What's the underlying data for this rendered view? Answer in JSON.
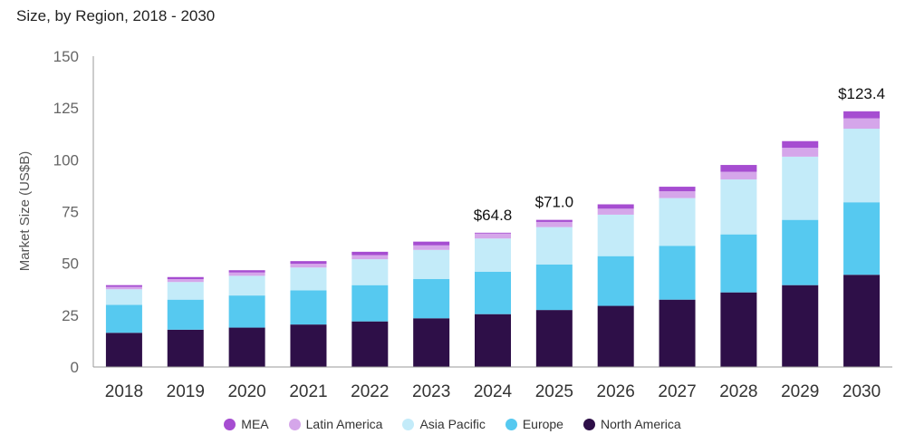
{
  "chart_data": {
    "type": "bar",
    "stacked": true,
    "title": "Size, by Region, 2018 - 2030",
    "xlabel": "",
    "ylabel": "Market Size (US$B)",
    "ylim": [
      0,
      150
    ],
    "yticks": [
      0,
      25,
      50,
      75,
      100,
      125,
      150
    ],
    "categories": [
      "2018",
      "2019",
      "2020",
      "2021",
      "2022",
      "2023",
      "2024",
      "2025",
      "2026",
      "2027",
      "2028",
      "2029",
      "2030"
    ],
    "series": [
      {
        "name": "North America",
        "color": "#2e0f48",
        "values": [
          16.5,
          18,
          19,
          20.5,
          22,
          23.5,
          25.5,
          27.5,
          29.5,
          32.5,
          36,
          39.5,
          44.5
        ]
      },
      {
        "name": "Europe",
        "color": "#56c9f0",
        "values": [
          13.5,
          14.5,
          15.5,
          16.5,
          17.5,
          19,
          20.5,
          22,
          24,
          26,
          28,
          31.5,
          35
        ]
      },
      {
        "name": "Asia Pacific",
        "color": "#c3ebf9",
        "values": [
          7.5,
          8.5,
          9.5,
          11,
          12.5,
          14,
          16,
          18,
          20,
          23,
          26.5,
          30.5,
          35.5
        ]
      },
      {
        "name": "Latin America",
        "color": "#d5a6ea",
        "values": [
          1.2,
          1.4,
          1.6,
          1.8,
          2,
          2.2,
          2.4,
          2.5,
          2.9,
          3.3,
          3.7,
          4.3,
          5
        ]
      },
      {
        "name": "MEA",
        "color": "#a64dd1",
        "values": [
          0.8,
          1,
          1.1,
          1.3,
          1.6,
          1.8,
          0.4,
          1,
          2.1,
          2.2,
          3.3,
          3.2,
          3.4
        ]
      }
    ],
    "annotations": [
      {
        "category": "2024",
        "text": "$64.8"
      },
      {
        "category": "2025",
        "text": "$71.0"
      },
      {
        "category": "2030",
        "text": "$123.4"
      }
    ],
    "legend": {
      "position": "bottom-center",
      "order": [
        "MEA",
        "Latin America",
        "Asia Pacific",
        "Europe",
        "North America"
      ]
    },
    "grid": false
  }
}
